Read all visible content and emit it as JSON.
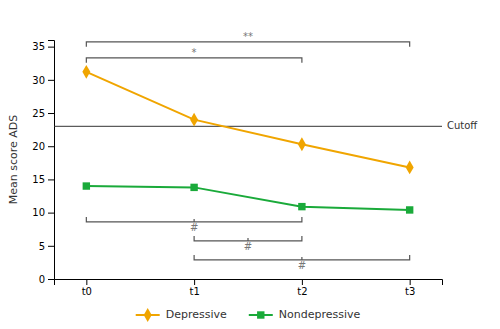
{
  "chart_data": {
    "type": "line",
    "y_label": "Mean score ADS",
    "categories": [
      "t0",
      "t1",
      "t2",
      "t3"
    ],
    "series": [
      {
        "name": "Depressive",
        "color": "#F0A500",
        "marker": "diamond",
        "values": [
          31.2,
          24.0,
          20.3,
          16.8
        ]
      },
      {
        "name": "Nondepressive",
        "color": "#1aaa3a",
        "marker": "square",
        "values": [
          14.0,
          13.8,
          10.9,
          10.4
        ]
      }
    ],
    "ylim": [
      0,
      36
    ],
    "yticks": [
      0,
      5,
      10,
      15,
      20,
      25,
      30,
      35
    ],
    "grid": false,
    "legend": "bottom",
    "hlines": [
      {
        "value": 23,
        "label": "Cutoff"
      }
    ],
    "annotations": [
      {
        "text": "*",
        "from": "t0",
        "to": "t2",
        "side": "top"
      },
      {
        "text": "**",
        "from": "t0",
        "to": "t3",
        "side": "top"
      },
      {
        "text": "#",
        "from": "t0",
        "to": "t2",
        "side": "bottom"
      },
      {
        "text": "#",
        "from": "t1",
        "to": "t2",
        "side": "bottom"
      },
      {
        "text": "#",
        "from": "t1",
        "to": "t3",
        "side": "bottom"
      }
    ]
  }
}
